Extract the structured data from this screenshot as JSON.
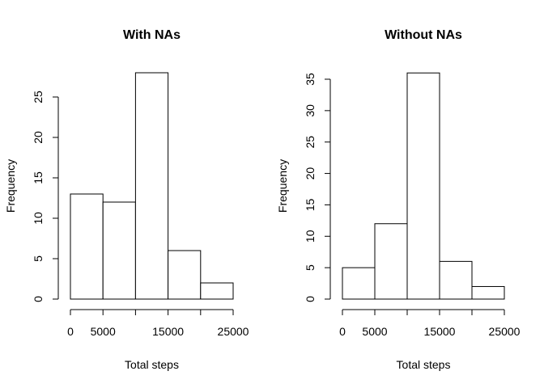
{
  "chart_data": [
    {
      "type": "bar",
      "title": "With NAs",
      "xlabel": "Total steps",
      "ylabel": "Frequency",
      "bins": [
        {
          "from": 0,
          "to": 5000,
          "count": 13
        },
        {
          "from": 5000,
          "to": 10000,
          "count": 12
        },
        {
          "from": 10000,
          "to": 15000,
          "count": 28
        },
        {
          "from": 15000,
          "to": 20000,
          "count": 6
        },
        {
          "from": 20000,
          "to": 25000,
          "count": 2
        }
      ],
      "xlim": [
        0,
        25000
      ],
      "ylim": [
        0,
        28
      ],
      "x_ticks": [
        0,
        5000,
        15000,
        25000
      ],
      "x_tick_marks": [
        0,
        5000,
        10000,
        15000,
        20000,
        25000
      ],
      "y_ticks": [
        0,
        5,
        10,
        15,
        20,
        25
      ],
      "grid": false,
      "bar_fill": "#ffffff",
      "bar_stroke": "#000000"
    },
    {
      "type": "bar",
      "title": "Without NAs",
      "xlabel": "Total steps",
      "ylabel": "Frequency",
      "bins": [
        {
          "from": 0,
          "to": 5000,
          "count": 5
        },
        {
          "from": 5000,
          "to": 10000,
          "count": 12
        },
        {
          "from": 10000,
          "to": 15000,
          "count": 36
        },
        {
          "from": 15000,
          "to": 20000,
          "count": 6
        },
        {
          "from": 20000,
          "to": 25000,
          "count": 2
        }
      ],
      "xlim": [
        0,
        25000
      ],
      "ylim": [
        0,
        36
      ],
      "x_ticks": [
        0,
        5000,
        15000,
        25000
      ],
      "x_tick_marks": [
        0,
        5000,
        10000,
        15000,
        20000,
        25000
      ],
      "y_ticks": [
        0,
        5,
        10,
        15,
        20,
        25,
        30,
        35
      ],
      "grid": false,
      "bar_fill": "#ffffff",
      "bar_stroke": "#000000"
    }
  ]
}
